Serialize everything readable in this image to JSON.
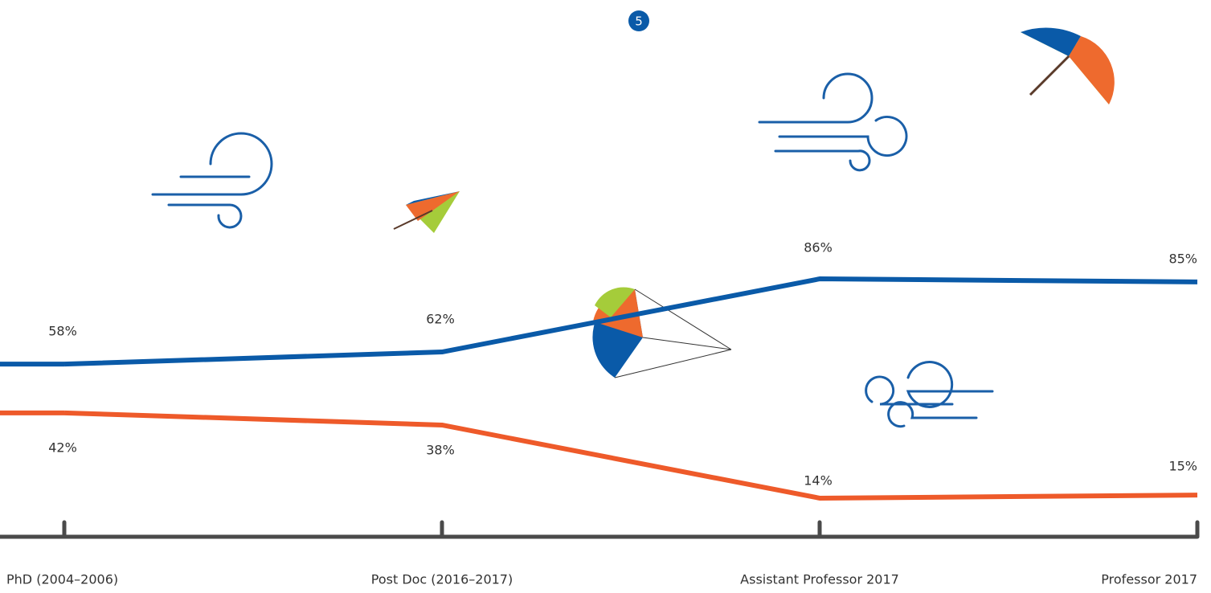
{
  "badge": "5",
  "chart_data": {
    "type": "line",
    "categories": [
      "PhD (2004–2006)",
      "Post Doc (2016–2017)",
      "Assistant Professor 2017",
      "Professor 2017"
    ],
    "series": [
      {
        "color": "#0a5aa8",
        "values": [
          58,
          62,
          86,
          85
        ],
        "value_labels": [
          "58%",
          "62%",
          "86%",
          "85%"
        ]
      },
      {
        "color": "#ee5a2a",
        "values": [
          42,
          38,
          14,
          15
        ],
        "value_labels": [
          "42%",
          "38%",
          "14%",
          "15%"
        ]
      }
    ],
    "axis_color": "#4a4a4a"
  }
}
